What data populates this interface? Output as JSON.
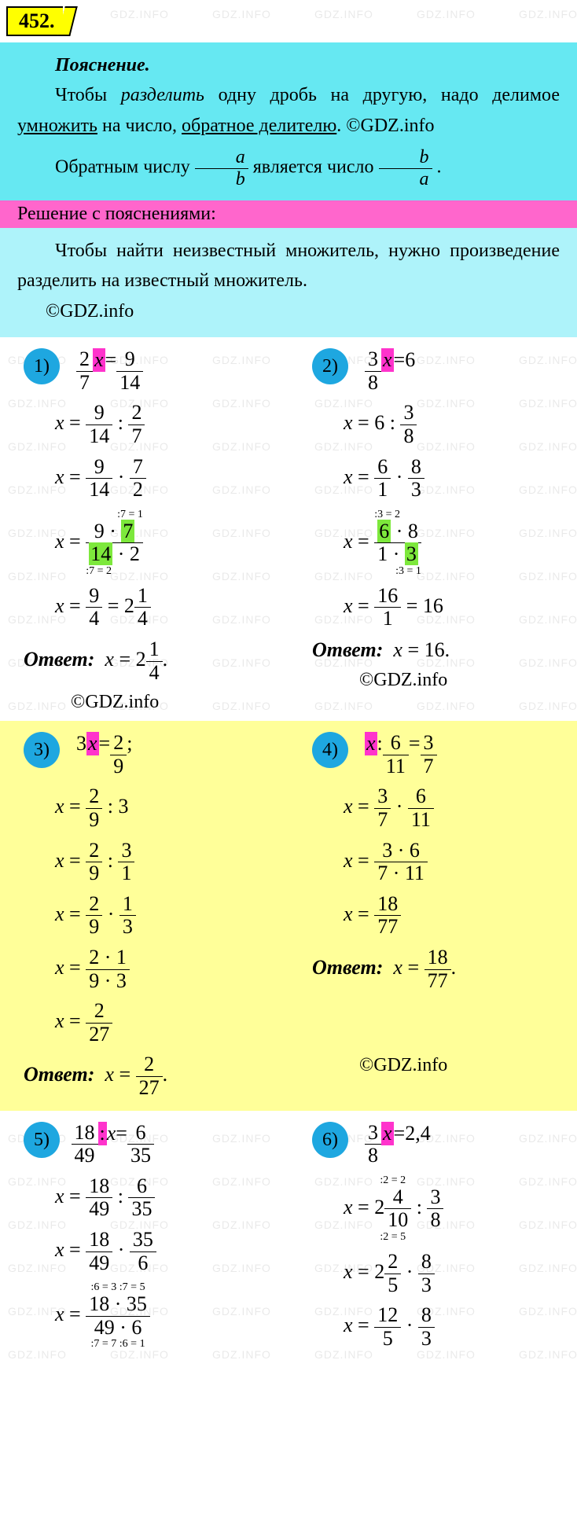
{
  "task_number": "452.",
  "watermark_text": "GDZ.INFO",
  "copyright": "©GDZ.info",
  "explanation": {
    "title": "Пояснение.",
    "text_parts": {
      "p1": "Чтобы ",
      "p2": "разделить",
      "p3": " одну дробь на другую, надо делимое ",
      "p4": "умножить",
      "p5": " на число, ",
      "p6": "обратное делителю",
      "p7": ". ©GDZ.info",
      "line2a": "Обратным числу ",
      "frac_ab_num": "a",
      "frac_ab_den": "b",
      "line2b": " является число ",
      "frac_ba_num": "b",
      "frac_ba_den": "a",
      "line2c": "."
    }
  },
  "solution_header": "Решение с пояснениями:",
  "solution_intro": {
    "a": "Чтобы найти неизвестный множи­тель, нужно произведение разделить на известный множитель.",
    "b": "©GDZ.info"
  },
  "problems": {
    "p1": {
      "num": "1)",
      "eq1": {
        "lhs_num": "2",
        "lhs_den": "7",
        "x": "x",
        "rhs_num": "9",
        "rhs_den": "14"
      },
      "eq2": {
        "x": "x",
        "a_num": "9",
        "a_den": "14",
        "op": ":",
        "b_num": "2",
        "b_den": "7"
      },
      "eq3": {
        "x": "x",
        "a_num": "9",
        "a_den": "14",
        "op": "·",
        "b_num": "7",
        "b_den": "2"
      },
      "eq4": {
        "x": "x",
        "top": "9 · ",
        "top_hl": "7",
        "note_top": ":7 = 1",
        "bot_hl": "14",
        "bot": " · 2",
        "note_bot": ":7 = 2"
      },
      "eq5": {
        "x": "x",
        "a_num": "9",
        "a_den": "4",
        "eq": "=",
        "mixed_int": "2",
        "mixed_num": "1",
        "mixed_den": "4"
      },
      "answer_label": "Ответ:",
      "answer": {
        "x": "x",
        "eq": "=",
        "mixed_int": "2",
        "mixed_num": "1",
        "mixed_den": "4",
        "end": "."
      }
    },
    "p2": {
      "num": "2)",
      "eq1": {
        "lhs_num": "3",
        "lhs_den": "8",
        "x": "x",
        "rhs": "6"
      },
      "eq2": {
        "x": "x",
        "a": "6",
        "op": ":",
        "b_num": "3",
        "b_den": "8"
      },
      "eq3": {
        "x": "x",
        "a_num": "6",
        "a_den": "1",
        "op": "·",
        "b_num": "8",
        "b_den": "3"
      },
      "eq4": {
        "x": "x",
        "top_hl": "6",
        "top": " · 8",
        "note_top": ":3 = 2",
        "bot": "1 · ",
        "bot_hl": "3",
        "note_bot": ":3 = 1"
      },
      "eq5": {
        "x": "x",
        "a_num": "16",
        "a_den": "1",
        "eq": "=",
        "res": "16"
      },
      "answer_label": "Ответ:",
      "answer": {
        "x": "x",
        "eq": "=",
        "res": "16",
        "end": "."
      }
    },
    "p3": {
      "num": "3)",
      "eq1": {
        "coef": "3",
        "x": "x",
        "rhs_num": "2",
        "rhs_den": "9",
        "end": ";"
      },
      "eq2": {
        "x": "x",
        "a_num": "2",
        "a_den": "9",
        "op": ":",
        "b": "3"
      },
      "eq3": {
        "x": "x",
        "a_num": "2",
        "a_den": "9",
        "op": ":",
        "b_num": "3",
        "b_den": "1"
      },
      "eq4": {
        "x": "x",
        "a_num": "2",
        "a_den": "9",
        "op": "·",
        "b_num": "1",
        "b_den": "3"
      },
      "eq5": {
        "x": "x",
        "top": "2 · 1",
        "bot": "9 · 3"
      },
      "eq6": {
        "x": "x",
        "a_num": "2",
        "a_den": "27"
      },
      "answer_label": "Ответ:",
      "answer": {
        "x": "x",
        "eq": "=",
        "a_num": "2",
        "a_den": "27",
        "end": "."
      }
    },
    "p4": {
      "num": "4)",
      "eq1": {
        "x": "x",
        "op": ":",
        "a_num": "6",
        "a_den": "11",
        "eq": "=",
        "b_num": "3",
        "b_den": "7"
      },
      "eq2": {
        "x": "x",
        "a_num": "3",
        "a_den": "7",
        "op": "·",
        "b_num": "6",
        "b_den": "11"
      },
      "eq3": {
        "x": "x",
        "top": "3 · 6",
        "bot": "7 · 11"
      },
      "eq4": {
        "x": "x",
        "a_num": "18",
        "a_den": "77"
      },
      "answer_label": "Ответ:",
      "answer": {
        "x": "x",
        "eq": "=",
        "a_num": "18",
        "a_den": "77",
        "end": "."
      }
    },
    "p5": {
      "num": "5)",
      "eq1": {
        "a_num": "18",
        "a_den": "49",
        "op": ":",
        "x": "x",
        "eq": "=",
        "b_num": "6",
        "b_den": "35"
      },
      "eq2": {
        "x": "x",
        "a_num": "18",
        "a_den": "49",
        "op": ":",
        "b_num": "6",
        "b_den": "35"
      },
      "eq3": {
        "x": "x",
        "a_num": "18",
        "a_den": "49",
        "op": "·",
        "b_num": "35",
        "b_den": "6"
      },
      "eq4": {
        "x": "x",
        "top": "18 · 35",
        "note_top_l": ":6 = 3",
        "note_top_r": ":7 = 5",
        "bot": "49 · 6",
        "note_bot_l": ":7 = 7",
        "note_bot_r": ":6 = 1"
      }
    },
    "p6": {
      "num": "6)",
      "eq1": {
        "a_num": "3",
        "a_den": "8",
        "x": "x",
        "eq": "=",
        "rhs": "2,4"
      },
      "eq2": {
        "x": "x",
        "mixed_int": "2",
        "mixed_num": "4",
        "mixed_den": "10",
        "note_top": ":2 = 2",
        "note_bot": ":2 = 5",
        "op": ":",
        "b_num": "3",
        "b_den": "8"
      },
      "eq3": {
        "x": "x",
        "mixed_int": "2",
        "mixed_num": "2",
        "mixed_den": "5",
        "op": "·",
        "b_num": "8",
        "b_den": "3"
      },
      "eq4": {
        "x": "x",
        "a_num": "12",
        "a_den": "5",
        "op": "·",
        "b_num": "8",
        "b_den": "3"
      }
    }
  },
  "colors": {
    "cyan": "#66e8f2",
    "cyan2": "#aef3fa",
    "pink": "#ff66cc",
    "yellow": "#ffff99",
    "circle": "#1ea7e0",
    "hl_pink": "#ff33cc",
    "hl_green": "#7de83c",
    "badge": "#ffff00"
  }
}
